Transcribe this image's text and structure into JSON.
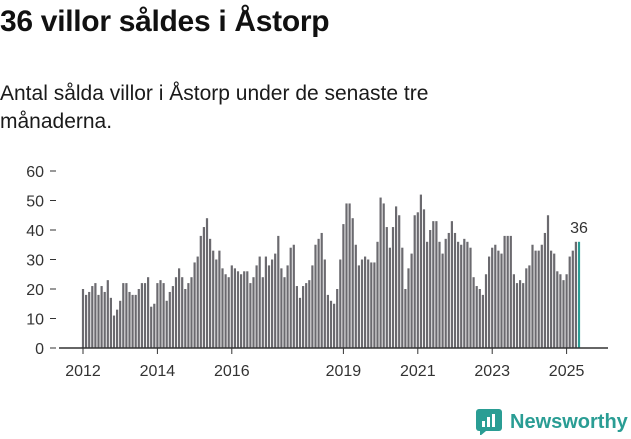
{
  "header": {
    "title": "36 villor såldes i Åstorp",
    "subtitle": "Antal sålda villor i Åstorp under de senaste tre månaderna."
  },
  "brand": {
    "name": "Newsworthy",
    "icon": "newsworthy-logo-icon"
  },
  "colors": {
    "bar": "#6b6a6f",
    "highlight": "#2a9d94",
    "axis": "#333333"
  },
  "chart_data": {
    "type": "bar",
    "title": "Antal sålda villor i Åstorp under de senaste tre månaderna.",
    "xlabel": "",
    "ylabel": "",
    "ylim": [
      0,
      60
    ],
    "yticks": [
      0,
      10,
      20,
      30,
      40,
      50,
      60
    ],
    "x_tick_labels": [
      "2012",
      "2014",
      "2016",
      "2019",
      "2021",
      "2023",
      "2025"
    ],
    "x_tick_months": [
      0,
      24,
      48,
      84,
      108,
      132,
      156
    ],
    "start": "2012-01",
    "values": [
      20,
      18,
      19,
      21,
      22,
      18,
      21,
      19,
      23,
      17,
      11,
      13,
      16,
      22,
      22,
      19,
      18,
      18,
      20,
      22,
      22,
      24,
      14,
      15,
      22,
      23,
      22,
      16,
      19,
      21,
      24,
      27,
      24,
      20,
      22,
      24,
      29,
      31,
      38,
      41,
      44,
      37,
      33,
      30,
      33,
      27,
      25,
      24,
      28,
      27,
      26,
      25,
      26,
      26,
      22,
      24,
      28,
      31,
      24,
      31,
      28,
      30,
      32,
      38,
      27,
      24,
      28,
      34,
      35,
      21,
      17,
      21,
      22,
      23,
      28,
      35,
      37,
      39,
      30,
      18,
      16,
      15,
      20,
      30,
      42,
      49,
      49,
      44,
      35,
      28,
      30,
      31,
      30,
      29,
      29,
      36,
      51,
      49,
      41,
      34,
      41,
      48,
      45,
      34,
      20,
      27,
      32,
      45,
      46,
      52,
      47,
      36,
      40,
      43,
      43,
      36,
      32,
      37,
      39,
      43,
      39,
      36,
      35,
      37,
      36,
      34,
      24,
      21,
      20,
      18,
      25,
      31,
      34,
      35,
      33,
      32,
      38,
      38,
      38,
      25,
      22,
      23,
      22,
      27,
      28,
      35,
      33,
      33,
      35,
      39,
      45,
      33,
      32,
      26,
      25,
      23,
      25,
      31,
      33,
      36,
      36
    ],
    "last_value_label": "36"
  }
}
